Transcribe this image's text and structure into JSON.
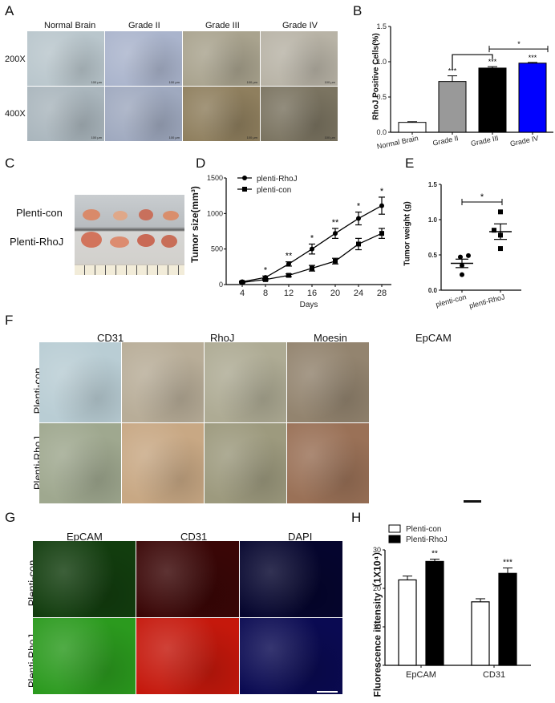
{
  "panels": {
    "A": {
      "letter": "A",
      "columns": [
        "Normal Brain",
        "Grade II",
        "Grade III",
        "Grade IV"
      ],
      "rows": [
        "200X",
        "400X"
      ],
      "scale_bar": "100 μm",
      "tile_colors": [
        [
          "#b9c6cc",
          "#aab4cc",
          "#a9a38e",
          "#b8b3a6"
        ],
        [
          "#aab6bd",
          "#9fa9bf",
          "#8f7f5e",
          "#7b7461"
        ]
      ]
    },
    "B": {
      "letter": "B",
      "ylabel": "RhoJ Positive Cells(%)",
      "yticks": [
        "0.0",
        "0.5",
        "1.0",
        "1.5"
      ],
      "sig_labels": [
        "***",
        "***",
        "***",
        "*"
      ]
    },
    "C": {
      "letter": "C",
      "rows": [
        "Plenti-con",
        "Plenti-RhoJ"
      ]
    },
    "D": {
      "letter": "D",
      "ylabel": "Tumor size(mm³)",
      "xlabel": "Days",
      "legend": [
        "plenti-RhoJ",
        "plenti-con"
      ],
      "yticks": [
        "0",
        "500",
        "1000",
        "1500"
      ],
      "xticks": [
        "4",
        "8",
        "12",
        "16",
        "20",
        "24",
        "28"
      ],
      "sig": [
        "",
        "*",
        "**",
        "*",
        "**",
        "*",
        "*"
      ]
    },
    "E": {
      "letter": "E",
      "ylabel": "Tumor weight (g)",
      "yticks": [
        "0.0",
        "0.5",
        "1.0",
        "1.5"
      ],
      "categories": [
        "plenti-con",
        "plenti-RhoJ"
      ],
      "sig": "*"
    },
    "F": {
      "letter": "F",
      "columns": [
        "CD31",
        "RhoJ",
        "Moesin",
        "EpCAM"
      ],
      "rows": [
        "Plenti-con",
        "Plenti-RhoJ"
      ],
      "tile_colors": [
        [
          "#b9cdd4",
          "#b8ad98",
          "#aeab94",
          "#93846f"
        ],
        [
          "#9fa88f",
          "#c8a884",
          "#9d9a7e",
          "#9a7157"
        ]
      ]
    },
    "G": {
      "letter": "G",
      "columns": [
        "EpCAM",
        "CD31",
        "DAPI"
      ],
      "rows": [
        "Plenti-con",
        "Plenti-RhoJ"
      ],
      "tile_colors": [
        [
          "#123d0e",
          "#3a0606",
          "#05052e"
        ],
        [
          "#2b9a1e",
          "#c5180c",
          "#0a0a52"
        ]
      ]
    },
    "H": {
      "letter": "H",
      "ylabel": "Fluorescence intensity（1X10⁴）",
      "legend": [
        "Plenti-con",
        "Plenti-RhoJ"
      ],
      "yticks": [
        "0",
        "10",
        "20",
        "30"
      ],
      "categories": [
        "EpCAM",
        "CD31"
      ],
      "sig": [
        "**",
        "***"
      ]
    }
  },
  "chart_data": [
    {
      "panel": "B",
      "type": "bar",
      "title": "",
      "xlabel": "",
      "ylabel": "RhoJ Positive Cells(%)",
      "categories": [
        "Normal Brain",
        "Grade II",
        "Grade III",
        "Grade IV"
      ],
      "values": [
        0.14,
        0.72,
        0.91,
        0.98
      ],
      "errors": [
        0.01,
        0.08,
        0.02,
        0.01
      ],
      "colors": [
        "#ffffff",
        "#999999",
        "#000000",
        "#0000ff"
      ],
      "annotations": [
        "",
        "***",
        "***",
        "***"
      ],
      "comparisons": [
        {
          "from": "Grade II",
          "to": "Grade III",
          "label": ""
        },
        {
          "from": "Grade III",
          "to": "Grade IV",
          "label": "*"
        }
      ],
      "ylim": [
        0,
        1.5
      ],
      "yticks": [
        0.0,
        0.5,
        1.0,
        1.5
      ],
      "grid": false
    },
    {
      "panel": "D",
      "type": "line",
      "title": "",
      "xlabel": "Days",
      "ylabel": "Tumor size(mm³)",
      "x": [
        4,
        8,
        12,
        16,
        20,
        24,
        28
      ],
      "series": [
        {
          "name": "plenti-RhoJ",
          "marker": "circle",
          "values": [
            40,
            100,
            290,
            500,
            720,
            930,
            1110
          ],
          "errors": [
            10,
            20,
            30,
            70,
            70,
            90,
            120
          ]
        },
        {
          "name": "plenti-con",
          "marker": "square",
          "values": [
            30,
            70,
            130,
            230,
            330,
            570,
            720
          ],
          "errors": [
            10,
            15,
            20,
            40,
            40,
            80,
            70
          ]
        }
      ],
      "annotations": [
        "",
        "*",
        "**",
        "*",
        "**",
        "*",
        "*"
      ],
      "ylim": [
        0,
        1500
      ],
      "yticks": [
        0,
        500,
        1000,
        1500
      ],
      "legend_position": "top-left",
      "grid": false
    },
    {
      "panel": "E",
      "type": "scatter",
      "title": "",
      "xlabel": "",
      "ylabel": "Tumor weight (g)",
      "categories": [
        "plenti-con",
        "plenti-RhoJ"
      ],
      "series": [
        {
          "name": "plenti-con",
          "marker": "circle",
          "values": [
            0.47,
            0.49,
            0.35,
            0.22
          ],
          "mean": 0.38,
          "sem": 0.06
        },
        {
          "name": "plenti-RhoJ",
          "marker": "square",
          "values": [
            1.11,
            0.85,
            0.78,
            0.59
          ],
          "mean": 0.83,
          "sem": 0.11
        }
      ],
      "annotations": [
        "*"
      ],
      "ylim": [
        0,
        1.5
      ],
      "yticks": [
        0.0,
        0.5,
        1.0,
        1.5
      ],
      "grid": false
    },
    {
      "panel": "H",
      "type": "bar",
      "title": "",
      "xlabel": "",
      "ylabel": "Fluorescence intensity（1X10⁴）",
      "categories": [
        "EpCAM",
        "CD31"
      ],
      "series": [
        {
          "name": "Plenti-con",
          "color": "#ffffff",
          "values": [
            22.2,
            16.5
          ],
          "errors": [
            1.0,
            0.8
          ]
        },
        {
          "name": "Plenti-RhoJ",
          "color": "#000000",
          "values": [
            27.0,
            23.9
          ],
          "errors": [
            0.6,
            1.4
          ]
        }
      ],
      "annotations": [
        "**",
        "***"
      ],
      "ylim": [
        0,
        30
      ],
      "yticks": [
        0,
        10,
        20,
        30
      ],
      "legend_position": "top-left",
      "grid": false
    }
  ]
}
